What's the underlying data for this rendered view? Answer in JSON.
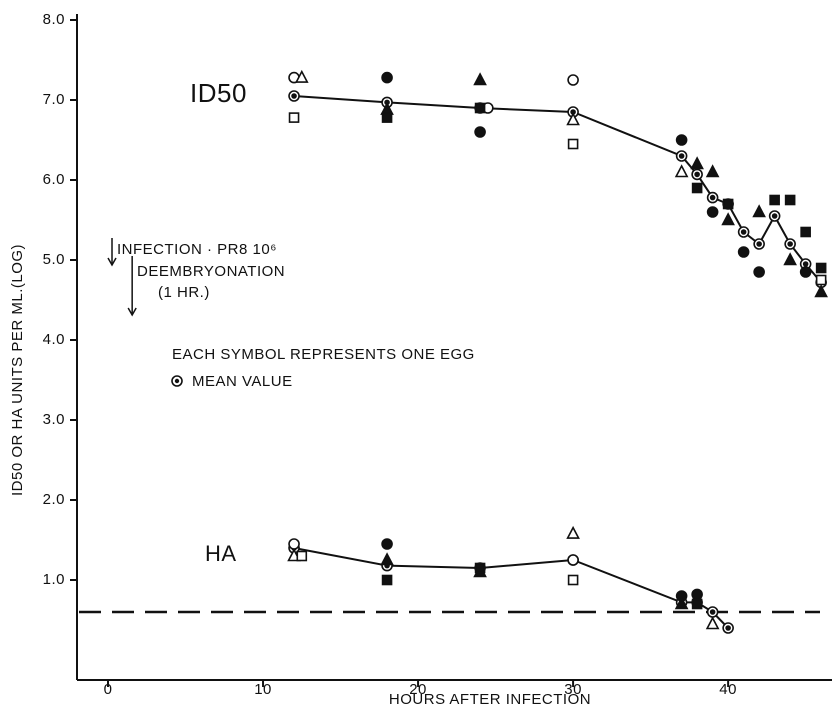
{
  "chart_data": {
    "type": "scatter",
    "ylabel": "ID50 OR HA UNITS PER ML.(LOG)",
    "xlabel": "HOURS AFTER INFECTION",
    "xlim": [
      -2,
      46.7
    ],
    "xticks": [
      0,
      10,
      20,
      30,
      40
    ],
    "ylim": [
      -0.25,
      8.2
    ],
    "yticks": [
      {
        "value": 1,
        "label": "1.0"
      },
      {
        "value": 2,
        "label": "2.0"
      },
      {
        "value": 3,
        "label": "3.0"
      },
      {
        "value": 4,
        "label": "4.0"
      },
      {
        "value": 5,
        "label": "5.0"
      },
      {
        "value": 6,
        "label": "6.0"
      },
      {
        "value": 7,
        "label": "7.0"
      },
      {
        "value": 8,
        "label": "8.0"
      }
    ],
    "reference_line": 0.6,
    "annotations": {
      "id50": "ID50",
      "ha": "HA",
      "infection": "INFECTION · PR8 10⁶",
      "deembryonation": "DEEMBRYONATION",
      "hour": "(1 HR.)",
      "symbol_note": "EACH SYMBOL REPRESENTS ONE EGG",
      "mean": "MEAN VALUE"
    },
    "event_times": [
      0,
      1.3
    ],
    "series": [
      {
        "marker": "mean",
        "line": true,
        "color": "#111111",
        "x": [
          12,
          18,
          24,
          30,
          37,
          38,
          39,
          40,
          41,
          42,
          43,
          44,
          45,
          46
        ],
        "values": [
          7.05,
          6.97,
          6.9,
          6.85,
          6.3,
          6.07,
          5.78,
          5.7,
          5.35,
          5.2,
          5.55,
          5.2,
          4.95,
          4.72
        ]
      },
      {
        "marker": "mean",
        "line": true,
        "color": "#111111",
        "x": [
          12,
          18,
          24,
          30,
          37,
          38,
          39,
          40
        ],
        "values": [
          1.4,
          1.18,
          1.15,
          1.25,
          0.72,
          0.72,
          0.6,
          0.4
        ]
      },
      {
        "marker": "circle",
        "filled": false,
        "color": "#111111",
        "x": [
          12,
          24.5,
          30,
          12,
          30
        ],
        "values": [
          7.28,
          6.9,
          7.25,
          1.45,
          1.25
        ]
      },
      {
        "marker": "circle",
        "filled": true,
        "color": "#111111",
        "x": [
          18,
          24,
          37,
          39,
          41,
          42,
          45,
          18,
          37,
          38
        ],
        "values": [
          7.28,
          6.6,
          6.5,
          5.6,
          5.1,
          4.85,
          4.85,
          1.45,
          0.8,
          0.82
        ]
      },
      {
        "marker": "triangle",
        "filled": false,
        "color": "#111111",
        "x": [
          12.5,
          30,
          37,
          12,
          30,
          39
        ],
        "values": [
          7.28,
          6.75,
          6.1,
          1.3,
          1.58,
          0.45
        ]
      },
      {
        "marker": "triangle",
        "filled": true,
        "color": "#111111",
        "x": [
          18,
          24,
          38,
          39,
          40,
          42,
          44,
          46,
          18,
          24,
          37
        ],
        "values": [
          6.88,
          7.25,
          6.2,
          6.1,
          5.5,
          5.6,
          5.0,
          4.6,
          1.25,
          1.1,
          0.7
        ]
      },
      {
        "marker": "square",
        "filled": false,
        "color": "#111111",
        "x": [
          12,
          30,
          46,
          12.5,
          30
        ],
        "values": [
          6.78,
          6.45,
          4.75,
          1.3,
          1.0
        ]
      },
      {
        "marker": "square",
        "filled": true,
        "color": "#111111",
        "x": [
          18,
          24,
          38,
          40,
          43,
          44,
          45,
          46,
          18,
          24,
          38
        ],
        "values": [
          6.78,
          6.9,
          5.9,
          5.7,
          5.75,
          5.75,
          5.35,
          4.9,
          1.0,
          1.15,
          0.7
        ]
      }
    ]
  }
}
